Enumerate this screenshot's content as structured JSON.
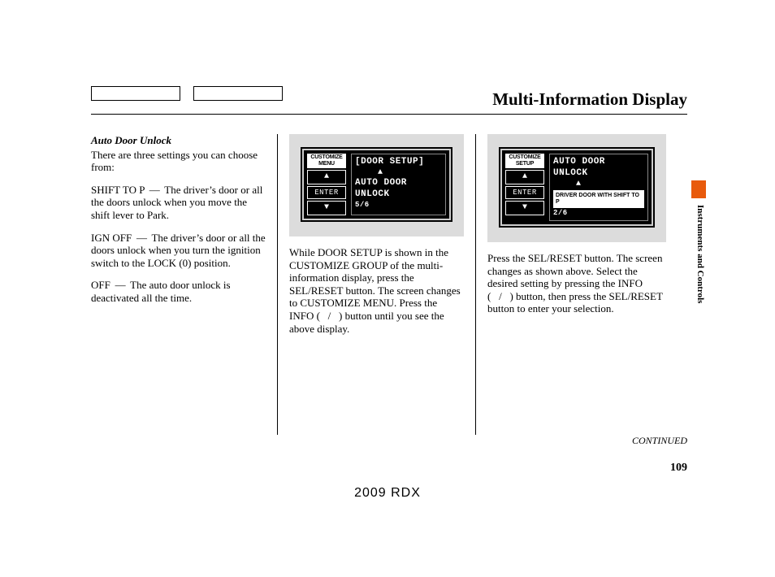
{
  "header": {
    "title": "Multi-Information Display"
  },
  "side": {
    "tab_color": "#e85a0c",
    "section": "Instruments and Controls"
  },
  "page_number": "109",
  "continued": "CONTINUED",
  "footer_model": "2009  RDX",
  "col1": {
    "subheading": "Auto Door Unlock",
    "intro": "There are three settings you can choose from:",
    "items": [
      {
        "label": "SHIFT TO P",
        "dash": "—",
        "text": "The driver’s door or all the doors unlock when you move the shift lever to Park."
      },
      {
        "label": "IGN OFF",
        "dash": "—",
        "text": "The driver’s door or all the doors unlock when you turn the ignition switch to the LOCK (0) position."
      },
      {
        "label": "OFF",
        "dash": "—",
        "text": "The auto door unlock is deactivated all the time."
      }
    ]
  },
  "col2": {
    "lcd": {
      "left_header": "CUSTOMIZE MENU",
      "enter": "ENTER",
      "up": "▲",
      "down": "▼",
      "line1": "[DOOR SETUP]",
      "arrow": "▲",
      "line2": "AUTO DOOR",
      "line3": "UNLOCK",
      "counter": "5/6"
    },
    "body": "While DOOR SETUP is shown in the CUSTOMIZE GROUP of the multi-information display, press the SEL/RESET button. The screen changes to CUSTOMIZE MENU. Press the INFO (   /   ) button until you see the above display."
  },
  "col3": {
    "lcd": {
      "left_header": "CUSTOMIZE SETUP",
      "enter": "ENTER",
      "up": "▲",
      "down": "▼",
      "line1": "AUTO DOOR",
      "line2": "UNLOCK",
      "arrow": "▲",
      "selection": "DRIVER DOOR WITH SHIFT TO P",
      "counter": "2/6"
    },
    "body": "Press the SEL/RESET button. The screen changes as shown above. Select the desired setting by pressing the INFO (   /   ) button, then press the SEL/RESET button to enter your selection."
  }
}
